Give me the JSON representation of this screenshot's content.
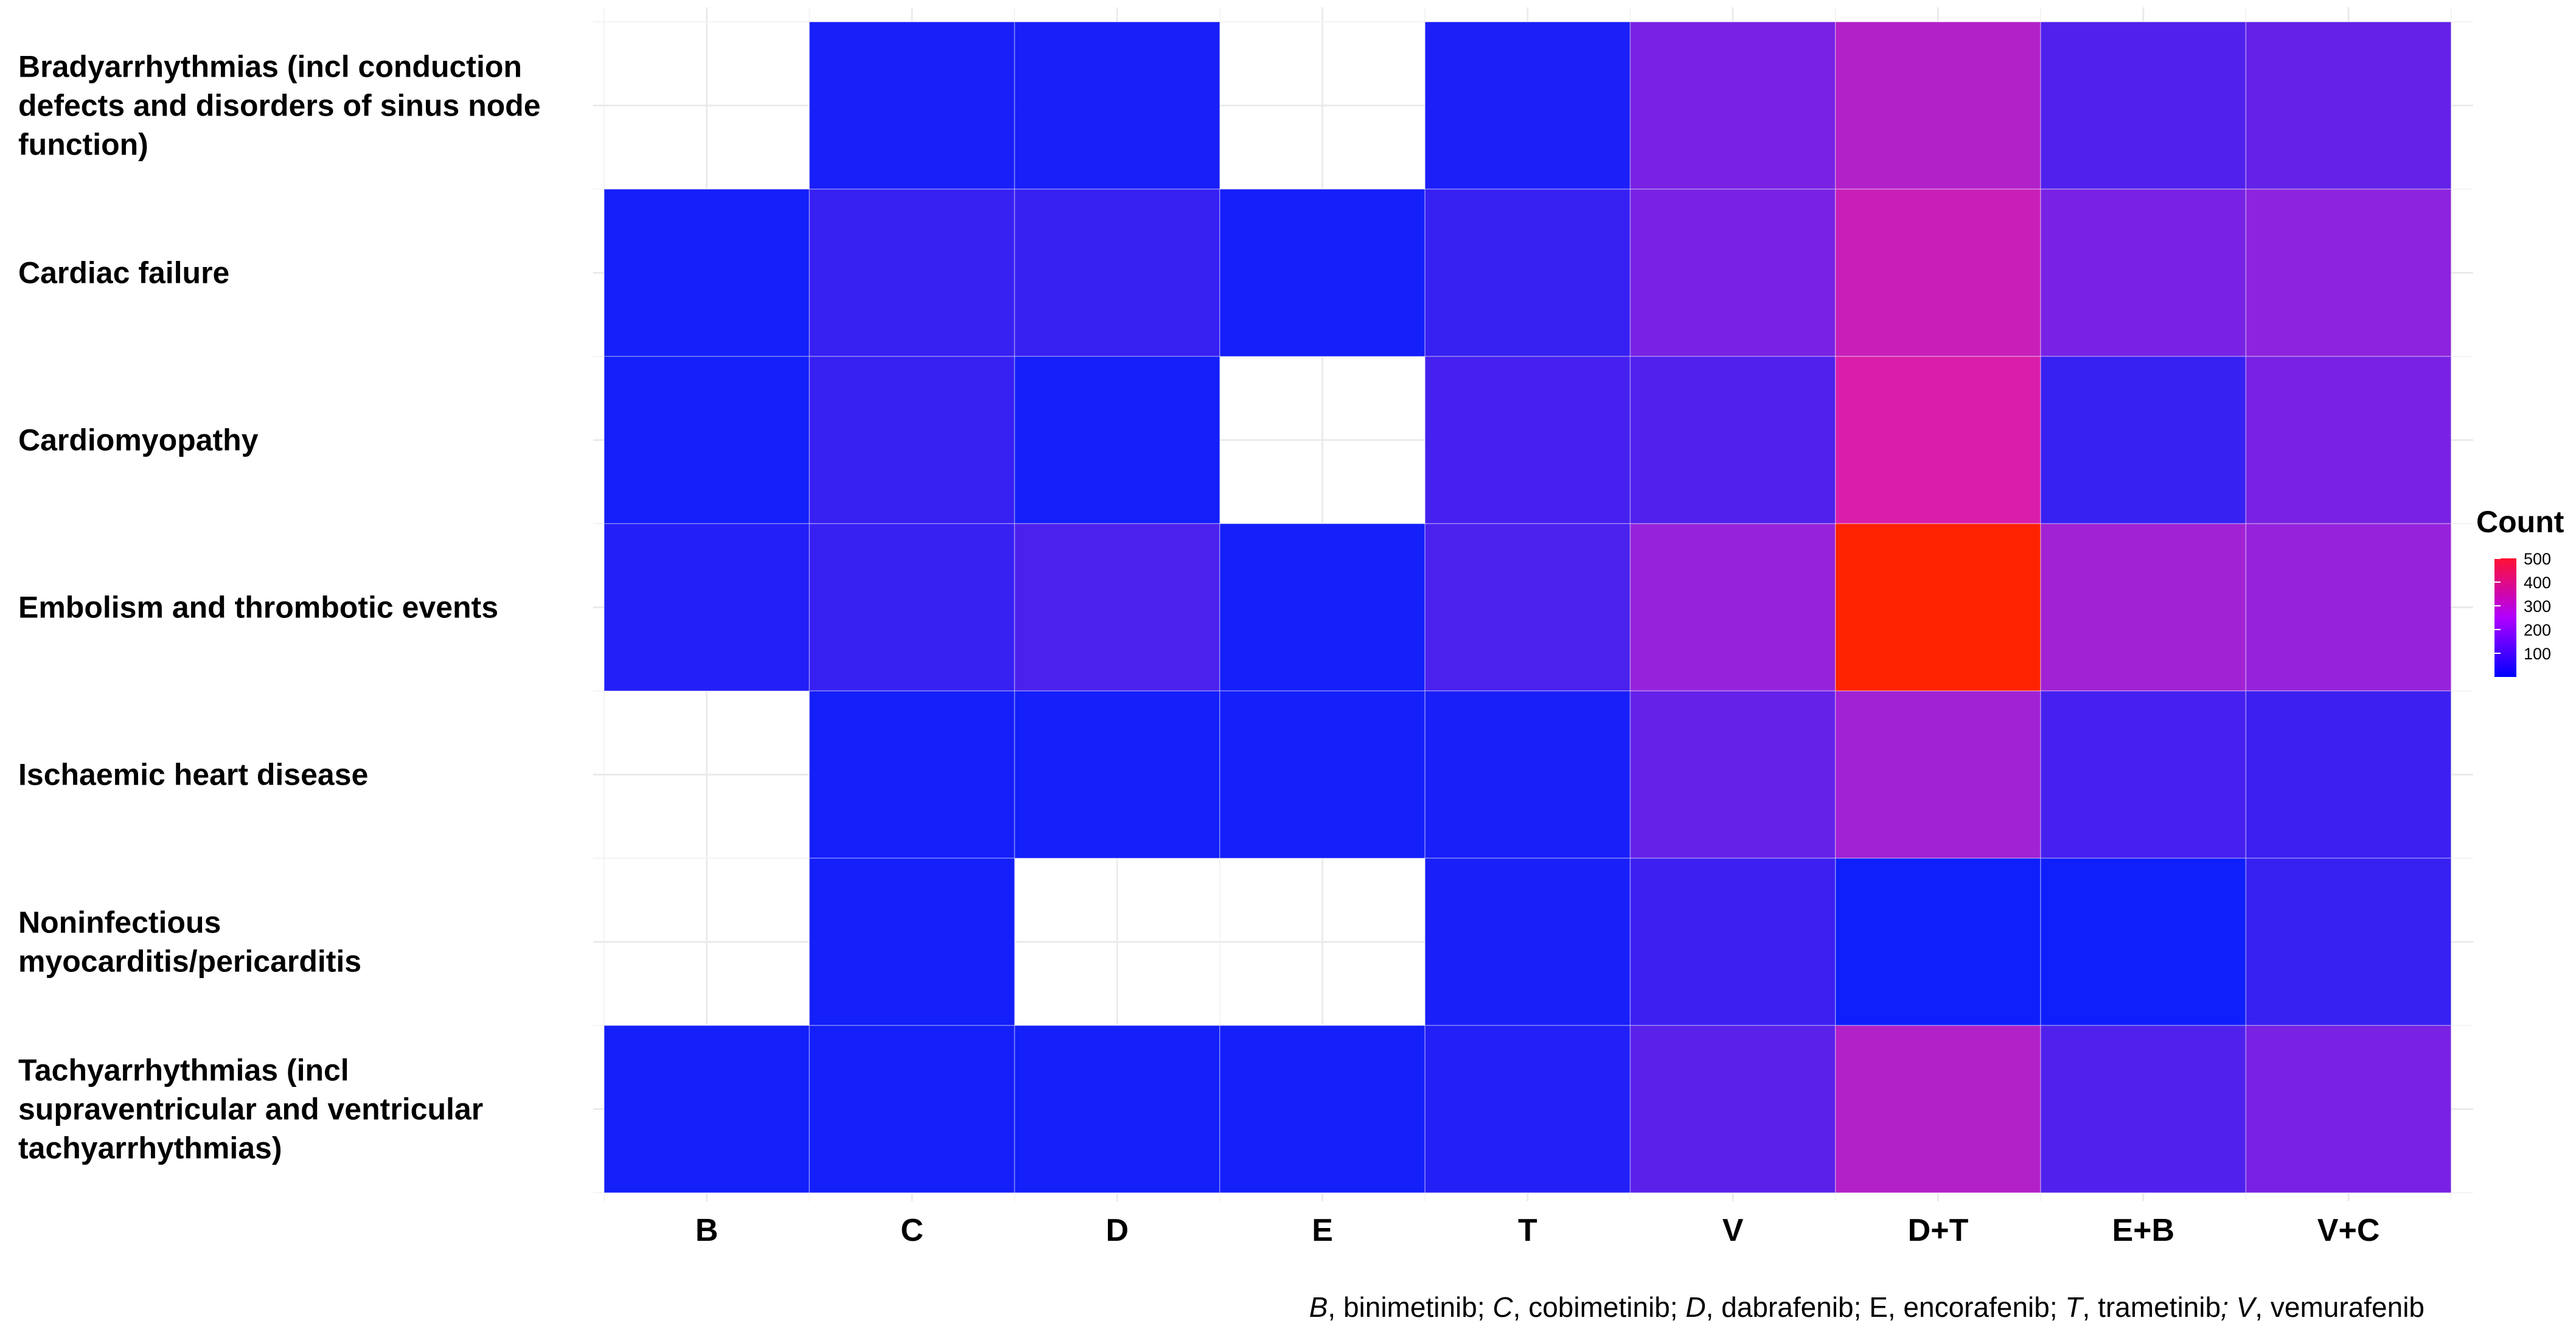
{
  "chart_data": {
    "type": "heatmap",
    "title": "",
    "xlabel": "",
    "ylabel": "",
    "categories": [
      "B",
      "C",
      "D",
      "E",
      "T",
      "V",
      "D+T",
      "E+B",
      "V+C"
    ],
    "rows": [
      {
        "label_lines": [
          "Bradyarrhythmias (incl conduction",
          "defects and disorders of sinus node",
          "function)"
        ],
        "values": [
          null,
          25,
          25,
          null,
          28,
          120,
          200,
          80,
          100
        ]
      },
      {
        "label_lines": [
          "Cardiac failure"
        ],
        "values": [
          20,
          55,
          55,
          20,
          55,
          120,
          240,
          120,
          140
        ]
      },
      {
        "label_lines": [
          "Cardiomyopathy"
        ],
        "values": [
          20,
          55,
          20,
          null,
          70,
          80,
          270,
          55,
          120
        ]
      },
      {
        "label_lines": [
          "Embolism and thrombotic events"
        ],
        "values": [
          35,
          55,
          75,
          20,
          75,
          150,
          500,
          170,
          150
        ]
      },
      {
        "label_lines": [
          "Ischaemic heart disease"
        ],
        "values": [
          null,
          20,
          20,
          20,
          25,
          100,
          170,
          70,
          60
        ]
      },
      {
        "label_lines": [
          "Noninfectious",
          "myocarditis/pericarditis"
        ],
        "values": [
          null,
          20,
          null,
          null,
          25,
          60,
          15,
          15,
          55
        ]
      },
      {
        "label_lines": [
          "Tachyarrhythmias (incl",
          "supraventricular and ventricular",
          "tachyarrhythmias)"
        ],
        "values": [
          20,
          20,
          20,
          20,
          35,
          90,
          200,
          80,
          120
        ]
      }
    ],
    "color_scale": {
      "low": "#0000ff",
      "high": "#ff2200",
      "min": 0,
      "max": 500
    },
    "legend": {
      "title": "Count",
      "position": "right",
      "ticks": [
        {
          "label": "500",
          "value": 500
        },
        {
          "label": "400",
          "value": 400
        },
        {
          "label": "300",
          "value": 300
        },
        {
          "label": "200",
          "value": 200
        },
        {
          "label": "100",
          "value": 100
        }
      ]
    },
    "grid": true
  },
  "caption_parts": [
    {
      "text": "B",
      "italic": true
    },
    {
      "text": ", binimetinib; ",
      "italic": false
    },
    {
      "text": "C",
      "italic": true
    },
    {
      "text": ", cobimetinib; ",
      "italic": false
    },
    {
      "text": "D",
      "italic": true
    },
    {
      "text": ", dabrafenib; E, encorafenib; ",
      "italic": false
    },
    {
      "text": "T",
      "italic": true
    },
    {
      "text": ", trametinib",
      "italic": false
    },
    {
      "text": "; V",
      "italic": true
    },
    {
      "text": ", vemurafenib",
      "italic": false
    }
  ]
}
